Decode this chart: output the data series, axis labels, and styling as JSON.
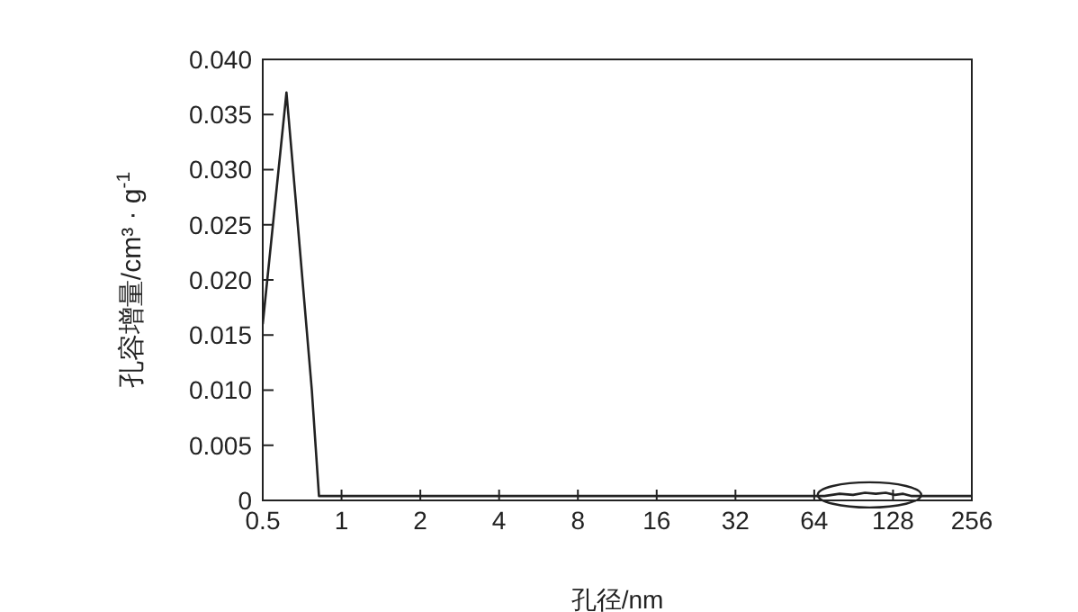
{
  "chart_data": {
    "type": "line",
    "xlabel": "孔径/nm",
    "ylabel": "孔容增量/cm³ · g$^{-1}$",
    "x": [
      0.5,
      0.616,
      0.664,
      0.77,
      0.82,
      2,
      8,
      32,
      70,
      80,
      90,
      100,
      110,
      120,
      130,
      140,
      150,
      256
    ],
    "series": [
      {
        "color": "#222222",
        "values": [
          0.016,
          0.037,
          0.028,
          0.01,
          0.0004,
          0.0004,
          0.0004,
          0.0004,
          0.0004,
          0.0006,
          0.0005,
          0.0007,
          0.0006,
          0.0007,
          0.0005,
          0.0006,
          0.0004,
          0.0004
        ]
      }
    ],
    "log": "x",
    "xlim": [
      0.5,
      256
    ],
    "xticks": [
      0.5,
      1,
      2,
      4,
      8,
      16,
      32,
      64,
      128,
      256
    ],
    "ylim": [
      0,
      0.04
    ],
    "yticks": [
      0,
      {
        "value": 0.005,
        "label": "0.005"
      },
      {
        "value": 0.01,
        "label": "0.010"
      },
      {
        "value": 0.015,
        "label": "0.015"
      },
      {
        "value": 0.02,
        "label": "0.020"
      },
      {
        "value": 0.025,
        "label": "0.025"
      },
      {
        "value": 0.03,
        "label": "0.030"
      },
      {
        "value": 0.035,
        "label": "0.035"
      },
      {
        "value": 0.04,
        "label": "0.040"
      }
    ],
    "grid": false,
    "legend": false,
    "marker": "none",
    "line_style": "solid"
  }
}
